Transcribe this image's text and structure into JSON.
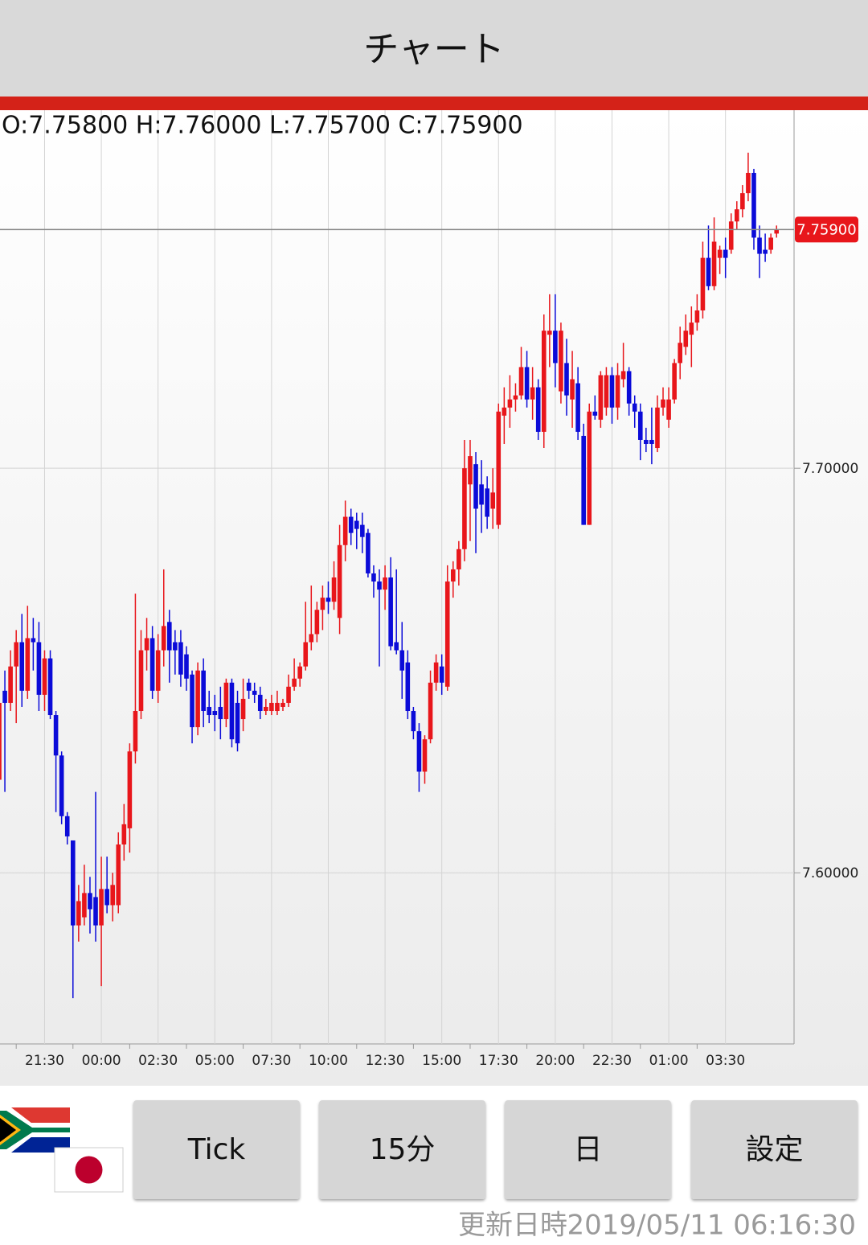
{
  "header": {
    "title": "チャート"
  },
  "chart_data": {
    "type": "candlestick",
    "ohlc_text": "O:7.75800 H:7.76000 L:7.75700 C:7.75900",
    "up_color": "#e8161b",
    "down_color": "#0b0bd8",
    "ylim": [
      7.5577,
      7.7885
    ],
    "yticks": [
      {
        "value": 7.7,
        "label": "7.70000"
      },
      {
        "value": 7.6,
        "label": "7.60000"
      }
    ],
    "grid": true,
    "current": {
      "value": 7.759,
      "label": "7.75900"
    },
    "categories": [
      null,
      null,
      null,
      null,
      null,
      null,
      null,
      null,
      "21:30",
      null,
      null,
      null,
      null,
      null,
      null,
      null,
      null,
      null,
      "00:00",
      null,
      null,
      null,
      null,
      null,
      null,
      null,
      null,
      null,
      "02:30",
      null,
      null,
      null,
      null,
      null,
      null,
      null,
      null,
      null,
      "05:00",
      null,
      null,
      null,
      null,
      null,
      null,
      null,
      null,
      null,
      "07:30",
      null,
      null,
      null,
      null,
      null,
      null,
      null,
      null,
      null,
      "10:00",
      null,
      null,
      null,
      null,
      null,
      null,
      null,
      null,
      null,
      "12:30",
      null,
      null,
      null,
      null,
      null,
      null,
      null,
      null,
      null,
      "15:00",
      null,
      null,
      null,
      null,
      null,
      null,
      null,
      null,
      null,
      "17:30",
      null,
      null,
      null,
      null,
      null,
      null,
      null,
      null,
      null,
      "20:00",
      null,
      null,
      null,
      null,
      null,
      null,
      null,
      null,
      null,
      "22:30",
      null,
      null,
      null,
      null,
      null,
      null,
      null,
      null,
      null,
      "01:00",
      null,
      null,
      null,
      null,
      null,
      null,
      null,
      null,
      null,
      "03:30",
      null,
      null,
      null,
      null,
      null,
      null,
      null,
      null,
      null
    ],
    "open": [
      7.623,
      7.645,
      7.642,
      7.651,
      7.657,
      7.645,
      7.658,
      7.657,
      7.644,
      7.653,
      7.639,
      7.629,
      7.614,
      7.608,
      7.587,
      7.589,
      7.595,
      7.594,
      7.587,
      7.596,
      7.592,
      7.592,
      7.607,
      7.611,
      7.63,
      7.64,
      7.655,
      7.658,
      7.645,
      7.655,
      7.662,
      7.657,
      7.657,
      7.654,
      7.649,
      7.636,
      7.65,
      7.641,
      7.64,
      7.641,
      7.638,
      7.647,
      7.642,
      7.638,
      7.647,
      7.645,
      7.644,
      7.64,
      7.64,
      7.64,
      7.641,
      7.642,
      7.646,
      7.648,
      7.651,
      7.657,
      7.659,
      7.665,
      7.668,
      7.667,
      7.663,
      7.681,
      7.688,
      7.687,
      7.686,
      7.684,
      7.674,
      7.672,
      7.67,
      7.673,
      7.657,
      7.655,
      7.652,
      7.64,
      7.635,
      7.625,
      7.633,
      7.647,
      7.651,
      7.646,
      7.672,
      7.675,
      7.68,
      7.696,
      7.701,
      7.696,
      7.695,
      7.69,
      7.686,
      7.713,
      7.715,
      7.717,
      7.718,
      7.725,
      7.717,
      7.72,
      7.709,
      7.733,
      7.734,
      7.719,
      7.726,
      7.717,
      7.721,
      7.708,
      7.686,
      7.714,
      7.712,
      7.715,
      7.723,
      7.715,
      7.722,
      7.724,
      7.716,
      7.714,
      7.707,
      7.707,
      7.705,
      7.715,
      7.712,
      7.717,
      7.726,
      7.73,
      7.733,
      7.736,
      7.739,
      7.752,
      7.745,
      7.752,
      7.754,
      7.754,
      7.761,
      7.764,
      7.768,
      7.773,
      7.757,
      7.754,
      7.754,
      7.758
    ],
    "high": [
      7.645,
      7.65,
      7.655,
      7.66,
      7.664,
      7.666,
      7.663,
      7.662,
      7.655,
      7.655,
      7.64,
      7.63,
      7.615,
      7.608,
      7.597,
      7.602,
      7.599,
      7.62,
      7.604,
      7.604,
      7.6,
      7.61,
      7.617,
      7.632,
      7.669,
      7.66,
      7.663,
      7.661,
      7.659,
      7.675,
      7.665,
      7.66,
      7.66,
      7.656,
      7.65,
      7.652,
      7.653,
      7.645,
      7.644,
      7.646,
      7.648,
      7.648,
      7.645,
      7.648,
      7.648,
      7.647,
      7.646,
      7.643,
      7.644,
      7.645,
      7.643,
      7.649,
      7.653,
      7.652,
      7.667,
      7.671,
      7.667,
      7.671,
      7.672,
      7.677,
      7.686,
      7.692,
      7.69,
      7.689,
      7.689,
      7.685,
      7.676,
      7.675,
      7.676,
      7.678,
      7.675,
      7.662,
      7.655,
      7.641,
      7.637,
      7.634,
      7.65,
      7.654,
      7.654,
      7.676,
      7.677,
      7.682,
      7.707,
      7.707,
      7.704,
      7.702,
      7.698,
      7.7,
      7.716,
      7.72,
      7.723,
      7.721,
      7.73,
      7.729,
      7.725,
      7.722,
      7.738,
      7.743,
      7.743,
      7.736,
      7.732,
      7.729,
      7.725,
      7.711,
      7.716,
      7.718,
      7.724,
      7.725,
      7.725,
      7.726,
      7.731,
      7.725,
      7.718,
      7.716,
      7.71,
      7.715,
      7.718,
      7.72,
      7.72,
      7.727,
      7.735,
      7.738,
      7.74,
      7.743,
      7.756,
      7.76,
      7.762,
      7.755,
      7.757,
      7.763,
      7.766,
      7.77,
      7.778,
      7.774,
      7.76,
      7.758,
      7.758,
      7.76
    ],
    "low": [
      7.622,
      7.62,
      7.64,
      7.637,
      7.641,
      7.643,
      7.65,
      7.64,
      7.64,
      7.638,
      7.615,
      7.612,
      7.607,
      7.569,
      7.583,
      7.587,
      7.585,
      7.583,
      7.572,
      7.59,
      7.588,
      7.59,
      7.603,
      7.605,
      7.627,
      7.638,
      7.65,
      7.643,
      7.642,
      7.651,
      7.647,
      7.649,
      7.646,
      7.645,
      7.632,
      7.634,
      7.636,
      7.637,
      7.635,
      7.633,
      7.636,
      7.631,
      7.63,
      7.635,
      7.643,
      7.642,
      7.638,
      7.639,
      7.639,
      7.639,
      7.64,
      7.641,
      7.645,
      7.646,
      7.65,
      7.655,
      7.657,
      7.66,
      7.664,
      7.665,
      7.659,
      7.677,
      7.681,
      7.68,
      7.679,
      7.673,
      7.668,
      7.651,
      7.665,
      7.655,
      7.654,
      7.643,
      7.638,
      7.633,
      7.62,
      7.622,
      7.632,
      7.645,
      7.644,
      7.645,
      7.668,
      7.671,
      7.677,
      7.682,
      7.679,
      7.684,
      7.685,
      7.685,
      7.685,
      7.706,
      7.71,
      7.714,
      7.717,
      7.715,
      7.712,
      7.707,
      7.705,
      7.725,
      7.72,
      7.716,
      7.713,
      7.71,
      7.707,
      7.686,
      7.686,
      7.712,
      7.71,
      7.713,
      7.711,
      7.712,
      7.72,
      7.713,
      7.71,
      7.702,
      7.704,
      7.701,
      7.704,
      7.713,
      7.71,
      7.716,
      7.722,
      7.728,
      7.725,
      7.734,
      7.737,
      7.744,
      7.744,
      7.748,
      7.747,
      7.753,
      7.759,
      7.762,
      7.766,
      7.754,
      7.747,
      7.751,
      7.753,
      7.757
    ],
    "close": [
      7.642,
      7.642,
      7.651,
      7.657,
      7.645,
      7.658,
      7.657,
      7.644,
      7.653,
      7.639,
      7.629,
      7.614,
      7.609,
      7.587,
      7.593,
      7.595,
      7.591,
      7.587,
      7.596,
      7.592,
      7.597,
      7.607,
      7.612,
      7.63,
      7.64,
      7.655,
      7.658,
      7.645,
      7.655,
      7.661,
      7.655,
      7.655,
      7.649,
      7.648,
      7.636,
      7.65,
      7.64,
      7.639,
      7.639,
      7.638,
      7.647,
      7.633,
      7.632,
      7.643,
      7.645,
      7.644,
      7.64,
      7.641,
      7.642,
      7.642,
      7.642,
      7.646,
      7.648,
      7.651,
      7.657,
      7.659,
      7.665,
      7.668,
      7.667,
      7.673,
      7.681,
      7.688,
      7.684,
      7.685,
      7.683,
      7.674,
      7.672,
      7.67,
      7.673,
      7.656,
      7.655,
      7.65,
      7.64,
      7.635,
      7.625,
      7.633,
      7.647,
      7.652,
      7.647,
      7.672,
      7.675,
      7.68,
      7.7,
      7.703,
      7.69,
      7.691,
      7.688,
      7.694,
      7.714,
      7.715,
      7.717,
      7.718,
      7.725,
      7.717,
      7.72,
      7.709,
      7.734,
      7.734,
      7.726,
      7.734,
      7.718,
      7.722,
      7.709,
      7.686,
      7.714,
      7.713,
      7.723,
      7.723,
      7.715,
      7.723,
      7.724,
      7.716,
      7.714,
      7.707,
      7.706,
      7.706,
      7.715,
      7.717,
      7.717,
      7.726,
      7.731,
      7.734,
      7.736,
      7.739,
      7.752,
      7.745,
      7.756,
      7.754,
      7.752,
      7.761,
      7.764,
      7.768,
      7.773,
      7.757,
      7.753,
      7.753,
      7.757,
      7.759
    ]
  },
  "buttons": [
    "Tick",
    "15分",
    "日",
    "設定"
  ],
  "footer": {
    "label": "更新日時",
    "time": "2019/05/11 06:16:30"
  }
}
